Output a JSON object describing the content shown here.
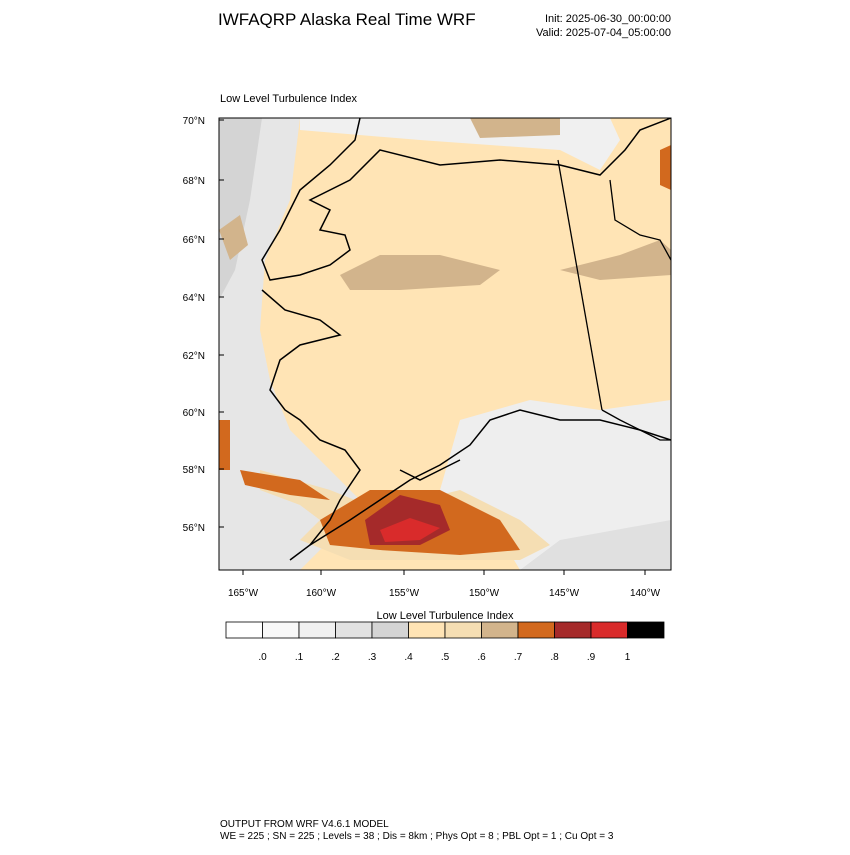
{
  "header": {
    "title": "IWFAQRP Alaska Real Time WRF",
    "init": "Init: 2025-06-30_00:00:00",
    "valid": "Valid: 2025-07-04_05:00:00"
  },
  "map": {
    "label": "Low Level Turbulence Index",
    "lat_labels": [
      "70°N",
      "68°N",
      "66°N",
      "64°N",
      "62°N",
      "60°N",
      "58°N",
      "56°N"
    ],
    "lon_labels": [
      "165°W",
      "160°W",
      "155°W",
      "150°W",
      "145°W",
      "140°W"
    ]
  },
  "colorbar": {
    "title": "Low Level Turbulence Index",
    "colors": [
      "#ffffff",
      "#f8f8f8",
      "#f0f0f0",
      "#e2e2e2",
      "#d4d4d4",
      "#ffe4b5",
      "#f5deb3",
      "#d2b48c",
      "#d2691e",
      "#a52a2a",
      "#d92b2b",
      "#000000"
    ],
    "labels": [
      ".0",
      ".1",
      ".2",
      ".3",
      ".4",
      ".5",
      ".6",
      ".7",
      ".8",
      ".9",
      "1"
    ]
  },
  "footer": {
    "line1": "OUTPUT FROM WRF V4.6.1 MODEL",
    "line2": "WE = 225 ; SN = 225 ; Levels = 38 ; Dis = 8km ; Phys Opt = 8 ; PBL Opt = 1 ; Cu Opt = 3"
  }
}
